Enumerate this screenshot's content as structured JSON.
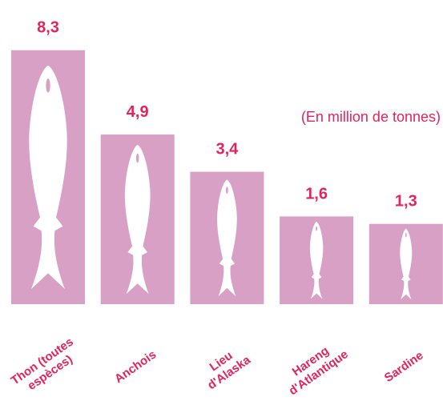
{
  "chart_data": {
    "type": "bar",
    "subtitle": "(En million de tonnes)",
    "categories": [
      "Thon (toutes\nespèces)",
      "Anchois",
      "Lieu\nd'Alaska",
      "Hareng\nd'Atlantique",
      "Sardine"
    ],
    "values": [
      8.3,
      4.9,
      3.4,
      1.6,
      1.3
    ],
    "value_labels": [
      "8,3",
      "4,9",
      "3,4",
      "1,6",
      "1,3"
    ],
    "color": "#d9a0c6"
  }
}
